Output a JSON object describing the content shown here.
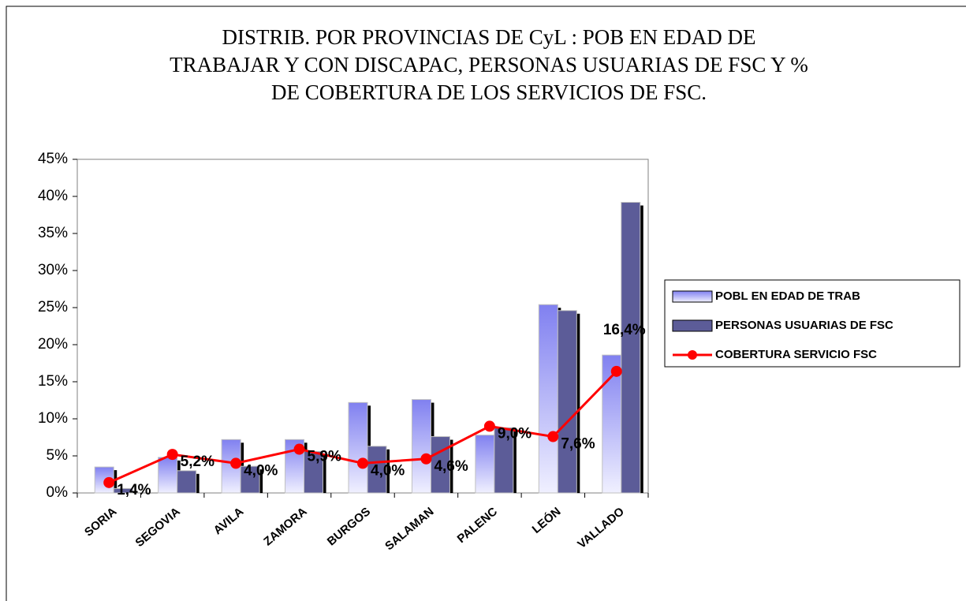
{
  "chart_data": {
    "type": "bar",
    "title": [
      "DISTRIB. POR PROVINCIAS DE CyL : POB EN EDAD DE",
      "TRABAJAR Y CON DISCAPAC, PERSONAS USUARIAS DE FSC Y %",
      "DE COBERTURA DE LOS SERVICIOS DE FSC."
    ],
    "categories": [
      "SORIA",
      "SEGOVIA",
      "AVILA",
      "ZAMORA",
      "BURGOS",
      "SALAMAN",
      "PALENC",
      "LEÓN",
      "VALLADO"
    ],
    "series": [
      {
        "name": "POBL EN EDAD DE TRAB",
        "type": "bar",
        "color": "#a8a8f0",
        "values": [
          3.5,
          4.8,
          7.2,
          7.2,
          12.2,
          12.6,
          7.8,
          25.4,
          18.6
        ]
      },
      {
        "name": "PERSONAS USUARIAS DE FSC",
        "type": "bar",
        "color": "#5c5c98",
        "values": [
          0.6,
          3.0,
          3.6,
          5.6,
          6.3,
          7.6,
          8.8,
          24.6,
          39.2
        ]
      },
      {
        "name": "COBERTURA SERVICIO FSC",
        "type": "line",
        "color": "#ff0000",
        "values": [
          1.4,
          5.2,
          4.0,
          5.9,
          4.0,
          4.6,
          9.0,
          7.6,
          16.4
        ],
        "value_labels": [
          "1,4%",
          "5,2%",
          "4,0%",
          "5,9%",
          "4,0%",
          "4,6%",
          "9,0%",
          "7,6%",
          "16,4%"
        ]
      }
    ],
    "ylim": [
      0,
      45
    ],
    "yticks": [
      {
        "value": 0,
        "label": "0%"
      },
      {
        "value": 5,
        "label": "5%"
      },
      {
        "value": 10,
        "label": "10%"
      },
      {
        "value": 15,
        "label": "15%"
      },
      {
        "value": 20,
        "label": "20%"
      },
      {
        "value": 25,
        "label": "25%"
      },
      {
        "value": 30,
        "label": "30%"
      },
      {
        "value": 35,
        "label": "35%"
      },
      {
        "value": 40,
        "label": "40%"
      },
      {
        "value": 45,
        "label": "45%"
      }
    ],
    "legend": "right"
  }
}
